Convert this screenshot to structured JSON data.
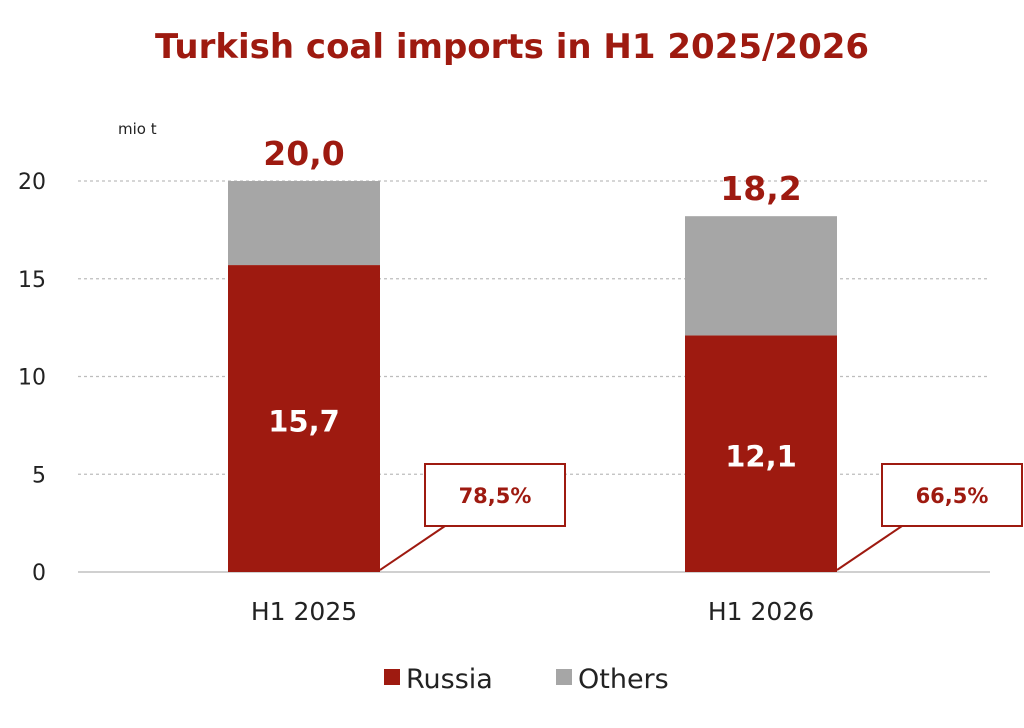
{
  "chart_data": {
    "type": "bar",
    "stacked": true,
    "title": "Turkish coal imports in H1 2025/2026",
    "unit_label": "mio t",
    "categories": [
      "H1 2025",
      "H1 2026"
    ],
    "series": [
      {
        "name": "Russia",
        "color": "#9e1a10",
        "values": [
          15.7,
          12.1
        ],
        "labels": [
          "15,7",
          "12,1"
        ]
      },
      {
        "name": "Others",
        "color": "#a6a6a6",
        "values": [
          4.3,
          6.1
        ]
      }
    ],
    "totals": [
      20.0,
      18.2
    ],
    "total_labels": [
      "20,0",
      "18,2"
    ],
    "russia_share_labels": [
      "78,5%",
      "66,5%"
    ],
    "ylim": [
      0,
      20
    ],
    "yticks": [
      0,
      5,
      10,
      15,
      20
    ],
    "grid": true,
    "legend_position": "bottom",
    "accent_color": "#9e1a10"
  }
}
